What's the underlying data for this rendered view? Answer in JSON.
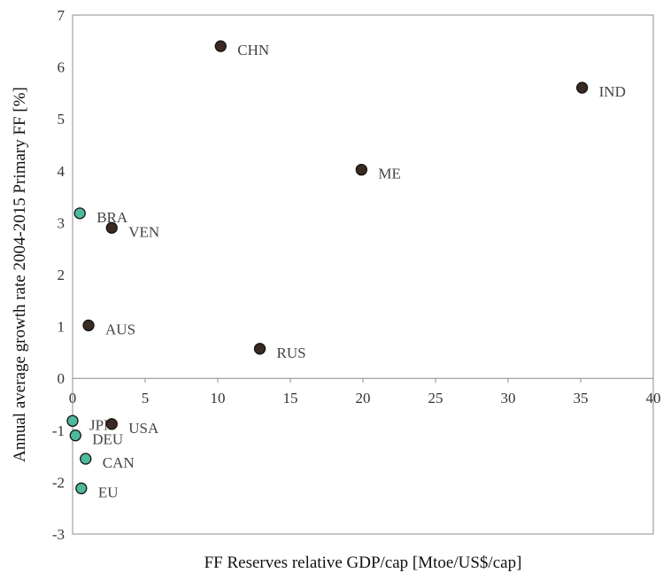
{
  "chart_data": {
    "type": "scatter",
    "xlabel": "FF Reserves relative GDP/cap [Mtoe/US$/cap]",
    "ylabel": "Annual average growth rate 2004-2015 Primary FF [%]",
    "xlim": [
      0,
      40
    ],
    "ylim": [
      -3,
      7
    ],
    "xticks": [
      0,
      5,
      10,
      15,
      20,
      25,
      30,
      35,
      40
    ],
    "yticks": [
      -3,
      -2,
      -1,
      0,
      1,
      2,
      3,
      4,
      5,
      6,
      7
    ],
    "grid": false,
    "colors": {
      "dark": "#3a2a22",
      "teal": "#4fb99d",
      "edge": "#111111"
    },
    "points": [
      {
        "label": "CHN",
        "x": 10.2,
        "y": 6.4,
        "color": "dark"
      },
      {
        "label": "IND",
        "x": 35.1,
        "y": 5.6,
        "color": "dark"
      },
      {
        "label": "ME",
        "x": 19.9,
        "y": 4.02,
        "color": "dark"
      },
      {
        "label": "BRA",
        "x": 0.5,
        "y": 3.18,
        "color": "teal"
      },
      {
        "label": "VEN",
        "x": 2.7,
        "y": 2.9,
        "color": "dark"
      },
      {
        "label": "AUS",
        "x": 1.1,
        "y": 1.02,
        "color": "dark"
      },
      {
        "label": "RUS",
        "x": 12.9,
        "y": 0.57,
        "color": "dark"
      },
      {
        "label": "JPN",
        "x": 0.0,
        "y": -0.82,
        "color": "teal"
      },
      {
        "label": "USA",
        "x": 2.7,
        "y": -0.88,
        "color": "dark"
      },
      {
        "label": "DEU",
        "x": 0.2,
        "y": -1.1,
        "color": "teal"
      },
      {
        "label": "CAN",
        "x": 0.9,
        "y": -1.55,
        "color": "teal"
      },
      {
        "label": "EU",
        "x": 0.6,
        "y": -2.12,
        "color": "teal"
      }
    ]
  }
}
